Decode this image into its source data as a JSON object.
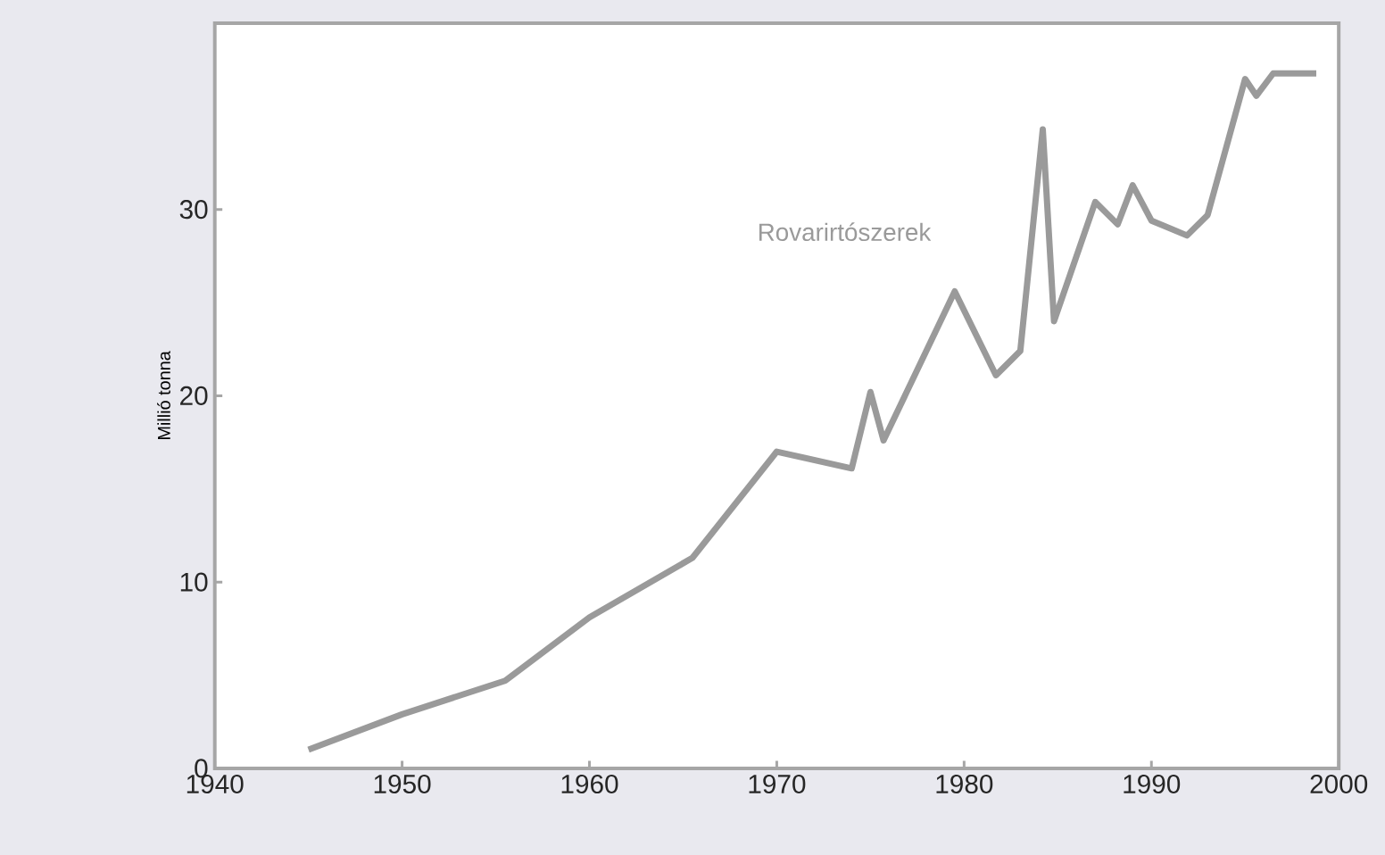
{
  "chart_data": {
    "type": "line",
    "ylabel": "Millió tonna",
    "x": [
      1945,
      1950,
      1955.5,
      1960,
      1965.5,
      1970,
      1974,
      1975,
      1975.7,
      1979.5,
      1981.7,
      1983,
      1984.2,
      1984.8,
      1987,
      1988.2,
      1989,
      1990,
      1991.9,
      1993,
      1995,
      1995.6,
      1996.5,
      1998.8
    ],
    "series": [
      {
        "name": "Rovarirtószerek",
        "color": "#9a9a9a",
        "values": [
          1.0,
          2.9,
          4.7,
          8.1,
          11.3,
          17.0,
          16.1,
          20.2,
          17.6,
          25.6,
          21.1,
          22.4,
          34.3,
          24.0,
          30.4,
          29.2,
          31.3,
          29.4,
          28.6,
          29.7,
          37.0,
          36.1,
          37.3,
          37.3
        ]
      }
    ],
    "xlim": [
      1940,
      2000
    ],
    "xticks": [
      1940,
      1950,
      1960,
      1970,
      1980,
      1990,
      2000
    ],
    "ylim": [
      0,
      40
    ],
    "yticks": [
      0,
      10,
      20,
      30
    ],
    "grid": false,
    "legend": false,
    "marker": "none",
    "line_style": "solid"
  }
}
